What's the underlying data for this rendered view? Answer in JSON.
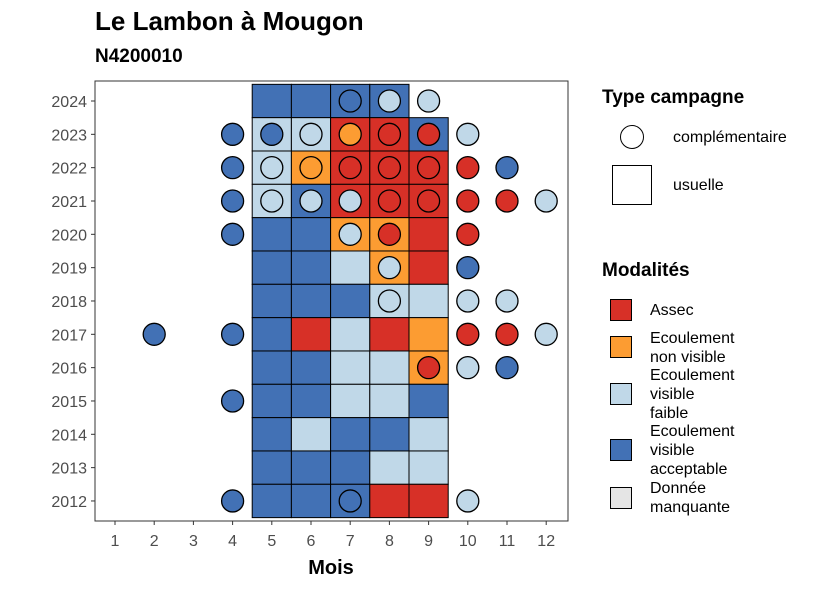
{
  "chart_data": {
    "type": "heatmap",
    "title": "Le Lambon à Mougon",
    "subtitle": "N4200010",
    "xlabel": "Mois",
    "ylabel": "",
    "x_ticks": [
      1,
      2,
      3,
      4,
      5,
      6,
      7,
      8,
      9,
      10,
      11,
      12
    ],
    "y_ticks": [
      2012,
      2013,
      2014,
      2015,
      2016,
      2017,
      2018,
      2019,
      2020,
      2021,
      2022,
      2023,
      2024
    ],
    "modalites": {
      "assec": {
        "label": "Assec",
        "color": "#d73027"
      },
      "non_visible": {
        "label": "Ecoulement\nnon visible",
        "color": "#fc9c32"
      },
      "faible": {
        "label": "Ecoulement\nvisible\nfaible",
        "color": "#c0d8e8"
      },
      "acceptable": {
        "label": "Ecoulement\nvisible\nacceptable",
        "color": "#4271b5"
      },
      "manquante": {
        "label": "Donnée\nmanquante",
        "color": "#e5e5e5"
      }
    },
    "legend_modalites_order": [
      "assec",
      "non_visible",
      "faible",
      "acceptable",
      "manquante"
    ],
    "legend_modalites_title": "Modalités",
    "legend_type_title": "Type campagne",
    "type_campagne": {
      "complementaire": "complémentaire",
      "usuelle": "usuelle"
    },
    "usuelle": [
      {
        "year": 2024,
        "month": 5,
        "value": "acceptable"
      },
      {
        "year": 2024,
        "month": 6,
        "value": "acceptable"
      },
      {
        "year": 2024,
        "month": 7,
        "value": "acceptable"
      },
      {
        "year": 2024,
        "month": 8,
        "value": "acceptable"
      },
      {
        "year": 2023,
        "month": 5,
        "value": "faible"
      },
      {
        "year": 2023,
        "month": 6,
        "value": "faible"
      },
      {
        "year": 2023,
        "month": 7,
        "value": "assec"
      },
      {
        "year": 2023,
        "month": 8,
        "value": "assec"
      },
      {
        "year": 2023,
        "month": 9,
        "value": "acceptable"
      },
      {
        "year": 2022,
        "month": 5,
        "value": "faible"
      },
      {
        "year": 2022,
        "month": 6,
        "value": "non_visible"
      },
      {
        "year": 2022,
        "month": 7,
        "value": "assec"
      },
      {
        "year": 2022,
        "month": 8,
        "value": "assec"
      },
      {
        "year": 2022,
        "month": 9,
        "value": "assec"
      },
      {
        "year": 2021,
        "month": 5,
        "value": "faible"
      },
      {
        "year": 2021,
        "month": 6,
        "value": "acceptable"
      },
      {
        "year": 2021,
        "month": 7,
        "value": "assec"
      },
      {
        "year": 2021,
        "month": 8,
        "value": "assec"
      },
      {
        "year": 2021,
        "month": 9,
        "value": "assec"
      },
      {
        "year": 2020,
        "month": 5,
        "value": "acceptable"
      },
      {
        "year": 2020,
        "month": 6,
        "value": "acceptable"
      },
      {
        "year": 2020,
        "month": 7,
        "value": "non_visible"
      },
      {
        "year": 2020,
        "month": 8,
        "value": "non_visible"
      },
      {
        "year": 2020,
        "month": 9,
        "value": "assec"
      },
      {
        "year": 2019,
        "month": 5,
        "value": "acceptable"
      },
      {
        "year": 2019,
        "month": 6,
        "value": "acceptable"
      },
      {
        "year": 2019,
        "month": 7,
        "value": "faible"
      },
      {
        "year": 2019,
        "month": 8,
        "value": "non_visible"
      },
      {
        "year": 2019,
        "month": 9,
        "value": "assec"
      },
      {
        "year": 2018,
        "month": 5,
        "value": "acceptable"
      },
      {
        "year": 2018,
        "month": 6,
        "value": "acceptable"
      },
      {
        "year": 2018,
        "month": 7,
        "value": "acceptable"
      },
      {
        "year": 2018,
        "month": 8,
        "value": "faible"
      },
      {
        "year": 2018,
        "month": 9,
        "value": "faible"
      },
      {
        "year": 2017,
        "month": 5,
        "value": "acceptable"
      },
      {
        "year": 2017,
        "month": 6,
        "value": "assec"
      },
      {
        "year": 2017,
        "month": 7,
        "value": "faible"
      },
      {
        "year": 2017,
        "month": 8,
        "value": "assec"
      },
      {
        "year": 2017,
        "month": 9,
        "value": "non_visible"
      },
      {
        "year": 2016,
        "month": 5,
        "value": "acceptable"
      },
      {
        "year": 2016,
        "month": 6,
        "value": "acceptable"
      },
      {
        "year": 2016,
        "month": 7,
        "value": "faible"
      },
      {
        "year": 2016,
        "month": 8,
        "value": "faible"
      },
      {
        "year": 2016,
        "month": 9,
        "value": "non_visible"
      },
      {
        "year": 2015,
        "month": 5,
        "value": "acceptable"
      },
      {
        "year": 2015,
        "month": 6,
        "value": "acceptable"
      },
      {
        "year": 2015,
        "month": 7,
        "value": "faible"
      },
      {
        "year": 2015,
        "month": 8,
        "value": "faible"
      },
      {
        "year": 2015,
        "month": 9,
        "value": "acceptable"
      },
      {
        "year": 2014,
        "month": 5,
        "value": "acceptable"
      },
      {
        "year": 2014,
        "month": 6,
        "value": "faible"
      },
      {
        "year": 2014,
        "month": 7,
        "value": "acceptable"
      },
      {
        "year": 2014,
        "month": 8,
        "value": "acceptable"
      },
      {
        "year": 2014,
        "month": 9,
        "value": "faible"
      },
      {
        "year": 2013,
        "month": 5,
        "value": "acceptable"
      },
      {
        "year": 2013,
        "month": 6,
        "value": "acceptable"
      },
      {
        "year": 2013,
        "month": 7,
        "value": "acceptable"
      },
      {
        "year": 2013,
        "month": 8,
        "value": "faible"
      },
      {
        "year": 2013,
        "month": 9,
        "value": "faible"
      },
      {
        "year": 2012,
        "month": 5,
        "value": "acceptable"
      },
      {
        "year": 2012,
        "month": 6,
        "value": "acceptable"
      },
      {
        "year": 2012,
        "month": 7,
        "value": "acceptable"
      },
      {
        "year": 2012,
        "month": 8,
        "value": "assec"
      },
      {
        "year": 2012,
        "month": 9,
        "value": "assec"
      }
    ],
    "complementaire": [
      {
        "year": 2024,
        "month": 7,
        "value": "acceptable"
      },
      {
        "year": 2024,
        "month": 8,
        "value": "faible"
      },
      {
        "year": 2024,
        "month": 9,
        "value": "faible"
      },
      {
        "year": 2023,
        "month": 4,
        "value": "acceptable"
      },
      {
        "year": 2023,
        "month": 5,
        "value": "acceptable"
      },
      {
        "year": 2023,
        "month": 6,
        "value": "faible"
      },
      {
        "year": 2023,
        "month": 7,
        "value": "non_visible"
      },
      {
        "year": 2023,
        "month": 8,
        "value": "assec"
      },
      {
        "year": 2023,
        "month": 9,
        "value": "assec"
      },
      {
        "year": 2023,
        "month": 10,
        "value": "faible"
      },
      {
        "year": 2022,
        "month": 4,
        "value": "acceptable"
      },
      {
        "year": 2022,
        "month": 5,
        "value": "faible"
      },
      {
        "year": 2022,
        "month": 6,
        "value": "non_visible"
      },
      {
        "year": 2022,
        "month": 7,
        "value": "assec"
      },
      {
        "year": 2022,
        "month": 8,
        "value": "assec"
      },
      {
        "year": 2022,
        "month": 9,
        "value": "assec"
      },
      {
        "year": 2022,
        "month": 10,
        "value": "assec"
      },
      {
        "year": 2022,
        "month": 11,
        "value": "acceptable"
      },
      {
        "year": 2021,
        "month": 4,
        "value": "acceptable"
      },
      {
        "year": 2021,
        "month": 5,
        "value": "faible"
      },
      {
        "year": 2021,
        "month": 6,
        "value": "faible"
      },
      {
        "year": 2021,
        "month": 7,
        "value": "faible"
      },
      {
        "year": 2021,
        "month": 8,
        "value": "assec"
      },
      {
        "year": 2021,
        "month": 9,
        "value": "assec"
      },
      {
        "year": 2021,
        "month": 10,
        "value": "assec"
      },
      {
        "year": 2021,
        "month": 11,
        "value": "assec"
      },
      {
        "year": 2021,
        "month": 12,
        "value": "faible"
      },
      {
        "year": 2020,
        "month": 4,
        "value": "acceptable"
      },
      {
        "year": 2020,
        "month": 7,
        "value": "faible"
      },
      {
        "year": 2020,
        "month": 8,
        "value": "assec"
      },
      {
        "year": 2020,
        "month": 10,
        "value": "assec"
      },
      {
        "year": 2019,
        "month": 8,
        "value": "faible"
      },
      {
        "year": 2019,
        "month": 10,
        "value": "acceptable"
      },
      {
        "year": 2018,
        "month": 8,
        "value": "faible"
      },
      {
        "year": 2018,
        "month": 10,
        "value": "faible"
      },
      {
        "year": 2018,
        "month": 11,
        "value": "faible"
      },
      {
        "year": 2017,
        "month": 2,
        "value": "acceptable"
      },
      {
        "year": 2017,
        "month": 4,
        "value": "acceptable"
      },
      {
        "year": 2017,
        "month": 10,
        "value": "assec"
      },
      {
        "year": 2017,
        "month": 11,
        "value": "assec"
      },
      {
        "year": 2017,
        "month": 12,
        "value": "faible"
      },
      {
        "year": 2016,
        "month": 9,
        "value": "assec"
      },
      {
        "year": 2016,
        "month": 10,
        "value": "faible"
      },
      {
        "year": 2016,
        "month": 11,
        "value": "acceptable"
      },
      {
        "year": 2015,
        "month": 4,
        "value": "acceptable"
      },
      {
        "year": 2012,
        "month": 4,
        "value": "acceptable"
      },
      {
        "year": 2012,
        "month": 7,
        "value": "acceptable"
      },
      {
        "year": 2012,
        "month": 10,
        "value": "faible"
      }
    ]
  }
}
